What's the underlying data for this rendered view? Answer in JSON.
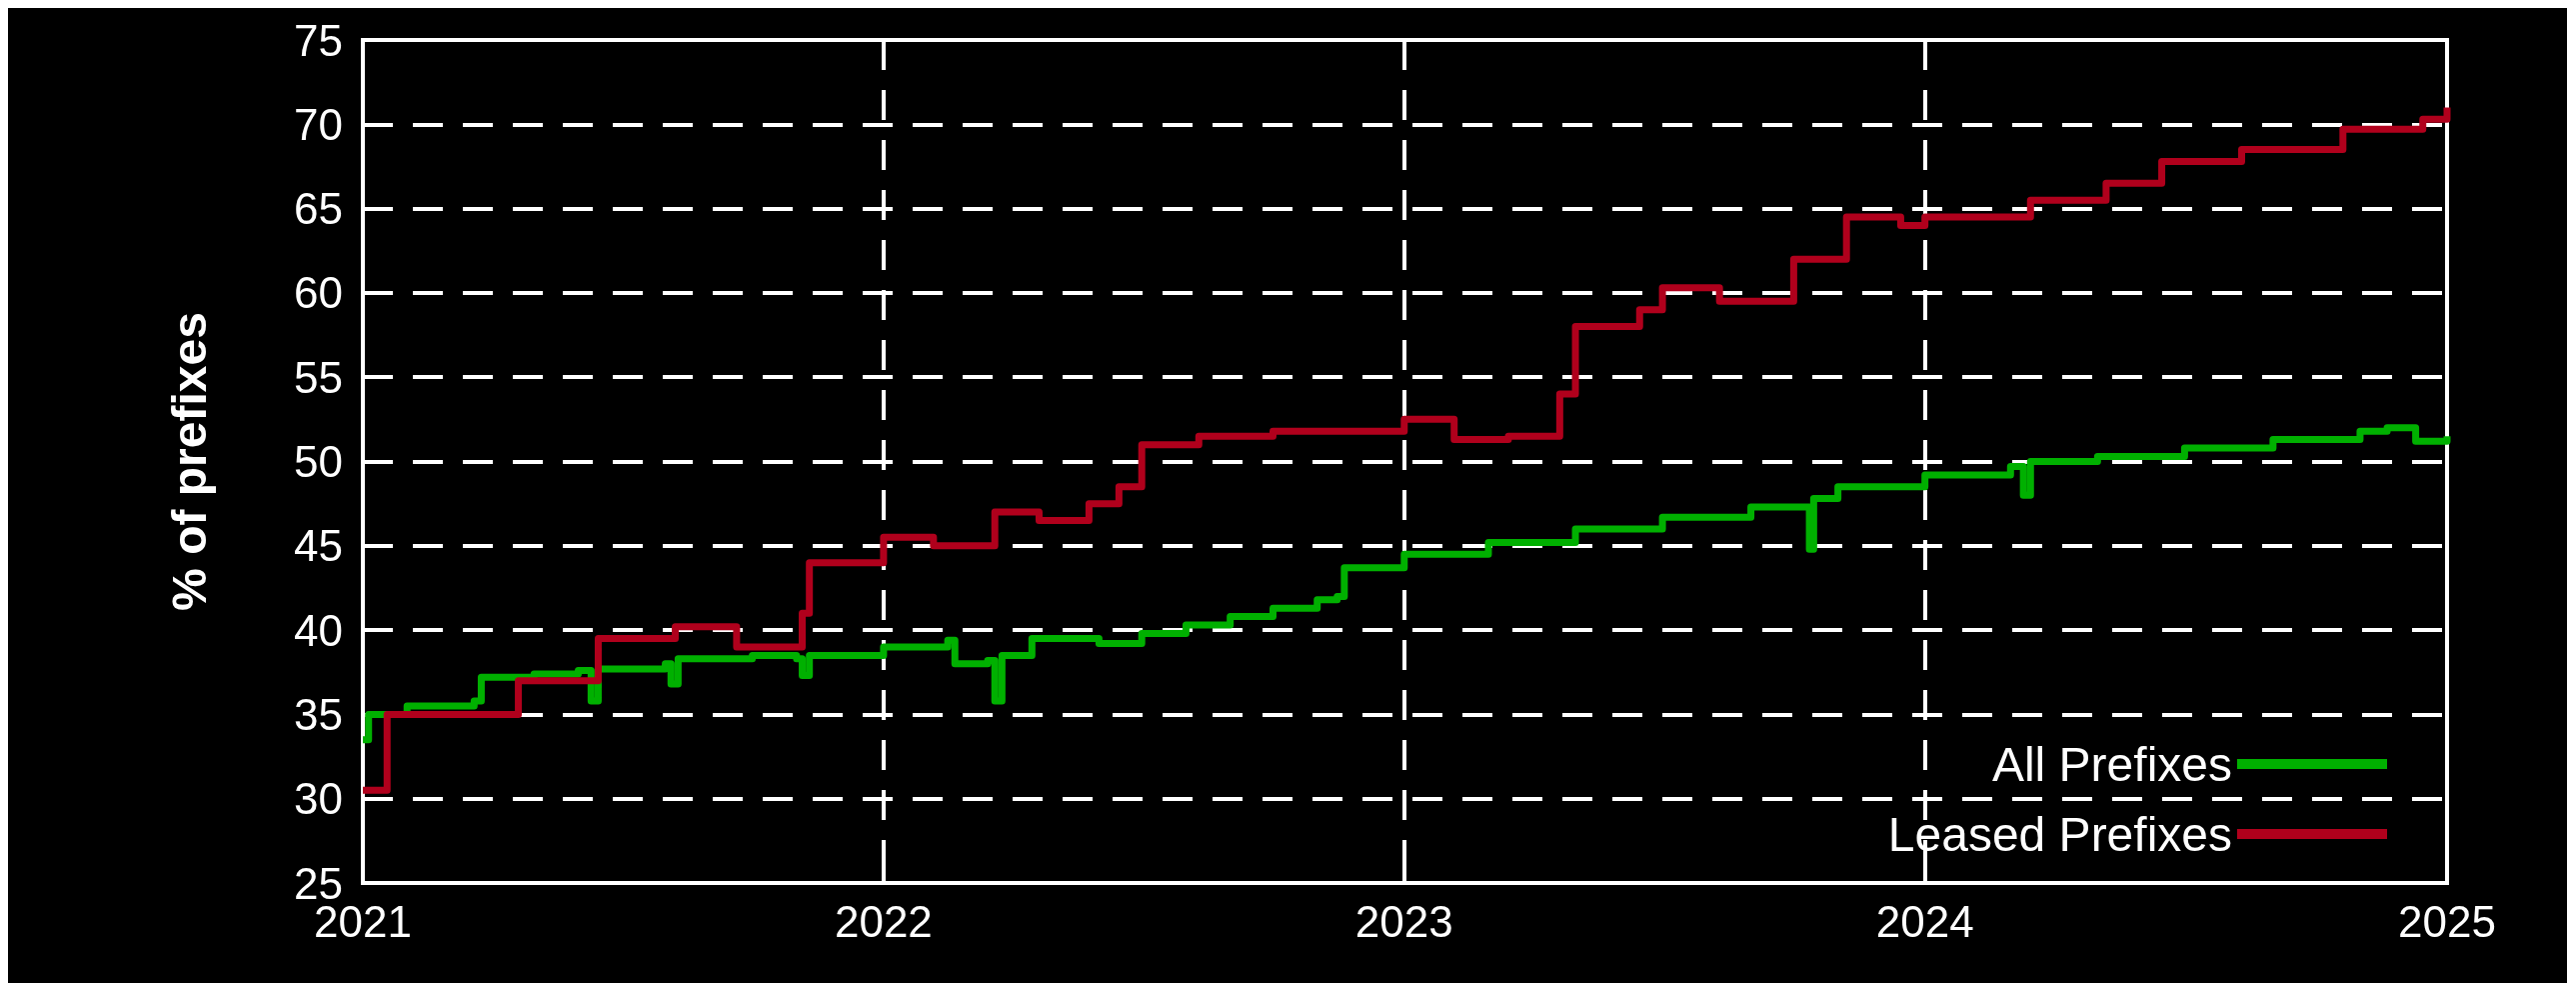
{
  "chart_data": {
    "type": "step",
    "ylabel": "% of prefixes",
    "xlim": [
      "2021",
      "2025"
    ],
    "xticks": [
      "2021",
      "2022",
      "2023",
      "2024",
      "2025"
    ],
    "ylim": [
      25,
      75
    ],
    "yticks": [
      25,
      30,
      35,
      40,
      45,
      50,
      55,
      60,
      65,
      70,
      75
    ],
    "grid": true,
    "legend": "bottom right",
    "line_style": "solid",
    "marker": "none",
    "series": [
      {
        "name": "All Prefixes",
        "color": "#00b000",
        "x": [
          "2021-01-01",
          "2021-01-05",
          "2021-02-01",
          "2021-03-20",
          "2021-03-25",
          "2021-05-01",
          "2021-06-01",
          "2021-06-10",
          "2021-06-15",
          "2021-08-01",
          "2021-08-05",
          "2021-08-10",
          "2021-10-01",
          "2021-11-01",
          "2021-11-05",
          "2021-11-10",
          "2022-01-01",
          "2022-02-15",
          "2022-02-20",
          "2022-03-15",
          "2022-03-20",
          "2022-03-25",
          "2022-04-15",
          "2022-06-01",
          "2022-07-01",
          "2022-08-01",
          "2022-09-01",
          "2022-10-01",
          "2022-11-01",
          "2022-11-15",
          "2022-11-20",
          "2023-01-01",
          "2023-03-01",
          "2023-05-01",
          "2023-07-01",
          "2023-09-01",
          "2023-10-10",
          "2023-10-12",
          "2023-10-15",
          "2023-11-01",
          "2024-01-01",
          "2024-03-01",
          "2024-03-10",
          "2024-03-15",
          "2024-05-01",
          "2024-07-01",
          "2024-09-01",
          "2024-11-01",
          "2024-11-20",
          "2024-12-10",
          "2025-01-01"
        ],
        "values": [
          33.5,
          35,
          35.5,
          35.8,
          37.2,
          37.4,
          37.6,
          35.8,
          37.7,
          38,
          36.8,
          38.3,
          38.5,
          38.3,
          37.3,
          38.5,
          39,
          39.4,
          38,
          38.2,
          35.8,
          38.5,
          39.5,
          39.2,
          39.8,
          40.3,
          40.8,
          41.3,
          41.8,
          42,
          43.7,
          44.5,
          45.2,
          46,
          46.7,
          47.3,
          47.3,
          44.8,
          47.8,
          48.5,
          49.2,
          49.7,
          48,
          50,
          50.3,
          50.8,
          51.3,
          51.8,
          52,
          51.2,
          51.5
        ]
      },
      {
        "name": "Leased Prefixes",
        "color": "#b0001c",
        "x": [
          "2021-01-01",
          "2021-01-18",
          "2021-04-20",
          "2021-06-15",
          "2021-08-08",
          "2021-09-20",
          "2021-11-05",
          "2021-11-10",
          "2022-01-01",
          "2022-02-05",
          "2022-03-20",
          "2022-04-20",
          "2022-05-25",
          "2022-06-15",
          "2022-07-01",
          "2022-08-10",
          "2022-10-01",
          "2023-01-01",
          "2023-02-05",
          "2023-03-15",
          "2023-04-20",
          "2023-05-01",
          "2023-06-15",
          "2023-07-01",
          "2023-08-10",
          "2023-10-01",
          "2023-11-07",
          "2023-12-15",
          "2024-01-01",
          "2024-03-15",
          "2024-05-07",
          "2024-06-15",
          "2024-08-10",
          "2024-10-20",
          "2024-12-15",
          "2025-01-01"
        ],
        "values": [
          30.5,
          35,
          37,
          39.5,
          40.2,
          39,
          41,
          44,
          45.5,
          45,
          47,
          46.5,
          47.5,
          48.5,
          51,
          51.5,
          51.8,
          52.5,
          51.3,
          51.5,
          54,
          58,
          59,
          60.3,
          59.5,
          62,
          64.5,
          64,
          64.5,
          65.5,
          66.5,
          67.8,
          68.5,
          69.7,
          70.3,
          71
        ]
      }
    ]
  }
}
